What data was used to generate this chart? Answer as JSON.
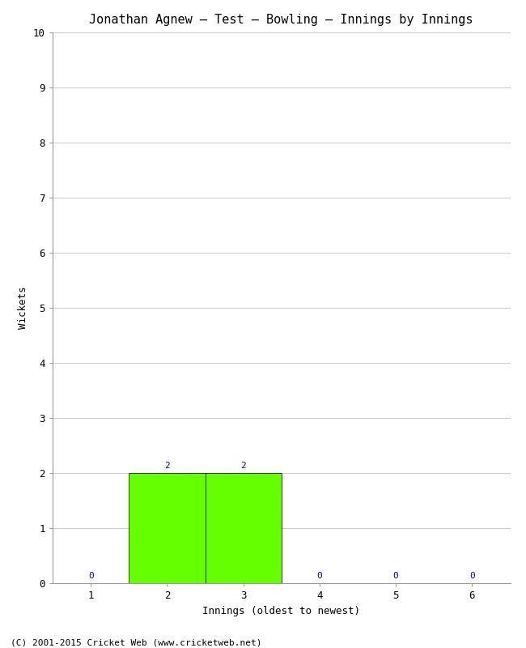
{
  "title": "Jonathan Agnew – Test – Bowling – Innings by Innings",
  "xlabel": "Innings (oldest to newest)",
  "ylabel": "Wickets",
  "categories": [
    1,
    2,
    3,
    4,
    5,
    6
  ],
  "values": [
    0,
    2,
    2,
    0,
    0,
    0
  ],
  "bar_color": "#66ff00",
  "bar_edge_color": "#000000",
  "label_color": "#0000cc",
  "ylim": [
    0,
    10
  ],
  "yticks": [
    0,
    1,
    2,
    3,
    4,
    5,
    6,
    7,
    8,
    9,
    10
  ],
  "xticks": [
    1,
    2,
    3,
    4,
    5,
    6
  ],
  "background_color": "#ffffff",
  "grid_color": "#cccccc",
  "footer": "(C) 2001-2015 Cricket Web (www.cricketweb.net)",
  "title_fontsize": 11,
  "axis_label_fontsize": 9,
  "tick_fontsize": 9,
  "annotation_fontsize": 8,
  "footer_fontsize": 8,
  "bar_width": 1.0
}
